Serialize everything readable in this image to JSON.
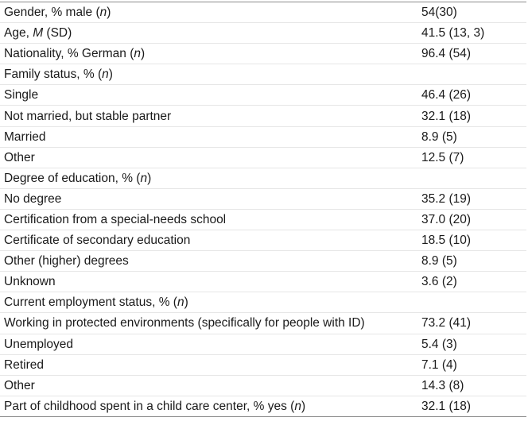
{
  "rows": [
    {
      "pre": "Gender, % male (",
      "it": "n",
      "post": ")",
      "value": "54(30)"
    },
    {
      "pre": "Age, ",
      "it": "M",
      "post": " (SD)",
      "value": "41.5 (13, 3)"
    },
    {
      "pre": "Nationality, % German (",
      "it": "n",
      "post": ")",
      "value": "96.4 (54)"
    },
    {
      "pre": "Family status, % (",
      "it": "n",
      "post": ")",
      "value": ""
    },
    {
      "pre": "Single",
      "it": "",
      "post": "",
      "value": "46.4 (26)"
    },
    {
      "pre": "Not married, but stable partner",
      "it": "",
      "post": "",
      "value": "32.1 (18)"
    },
    {
      "pre": "Married",
      "it": "",
      "post": "",
      "value": "8.9 (5)"
    },
    {
      "pre": "Other",
      "it": "",
      "post": "",
      "value": "12.5 (7)"
    },
    {
      "pre": "Degree of education, % (",
      "it": "n",
      "post": ")",
      "value": ""
    },
    {
      "pre": "No degree",
      "it": "",
      "post": "",
      "value": "35.2 (19)"
    },
    {
      "pre": "Certification from a special-needs school",
      "it": "",
      "post": "",
      "value": "37.0 (20)"
    },
    {
      "pre": "Certificate of secondary education",
      "it": "",
      "post": "",
      "value": "18.5 (10)"
    },
    {
      "pre": "Other (higher) degrees",
      "it": "",
      "post": "",
      "value": "8.9 (5)"
    },
    {
      "pre": "Unknown",
      "it": "",
      "post": "",
      "value": "3.6 (2)"
    },
    {
      "pre": "Current employment status, % (",
      "it": "n",
      "post": ")",
      "value": ""
    },
    {
      "pre": "Working in protected environments (specifically for people with ID)",
      "it": "",
      "post": "",
      "value": "73.2 (41)"
    },
    {
      "pre": "Unemployed",
      "it": "",
      "post": "",
      "value": "5.4 (3)"
    },
    {
      "pre": "Retired",
      "it": "",
      "post": "",
      "value": "7.1 (4)"
    },
    {
      "pre": "Other",
      "it": "",
      "post": "",
      "value": "14.3 (8)"
    },
    {
      "pre": "Part of childhood spent in a child care center, % yes (",
      "it": "n",
      "post": ")",
      "value": "32.1 (18)"
    }
  ]
}
